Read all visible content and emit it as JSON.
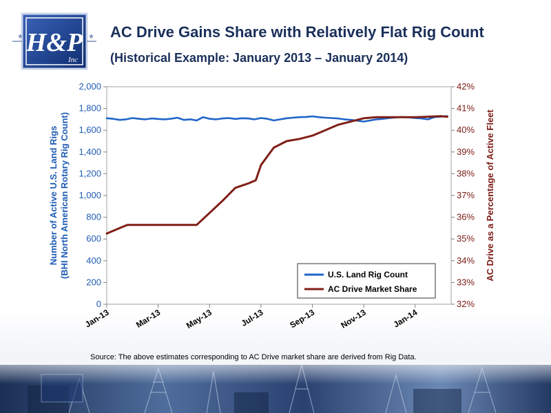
{
  "title": "AC Drive Gains Share with Relatively Flat Rig Count",
  "subtitle": "(Historical Example: January 2013 – January 2014)",
  "logo_text": "H&P Inc",
  "source_note": "Source: The above estimates corresponding to AC Drive market share are derived from Rig Data.",
  "colors": {
    "title": "#1a2f5a",
    "rig_count": "#1e64c8",
    "ac_drive": "#7f1f17",
    "left_axis_text": "#1e5cb3",
    "right_axis_text": "#7a1a14"
  },
  "chart_data": {
    "type": "line",
    "title": "AC Drive Gains Share with Relatively Flat Rig Count",
    "subtitle": "(Historical Example: January 2013 – January 2014)",
    "x_tick_labels": [
      "Jan-13",
      "Mar-13",
      "May-13",
      "Jul-13",
      "Sep-13",
      "Nov-13",
      "Jan-14"
    ],
    "x_range_months": [
      0,
      13.4
    ],
    "y_left": {
      "label_line1": "Number of Active U.S. Land Rigs",
      "label_line2": "(BHI North American Rotary Rig Count)",
      "ticks": [
        "0",
        "200",
        "400",
        "600",
        "800",
        "1,000",
        "1,200",
        "1,400",
        "1,600",
        "1,800",
        "2,000"
      ],
      "range": [
        0,
        2000
      ]
    },
    "y_right": {
      "label": "AC Drive as a Percentage of Active Fleet",
      "ticks": [
        "32%",
        "33%",
        "34%",
        "35%",
        "36%",
        "37%",
        "38%",
        "39%",
        "40%",
        "41%",
        "42%"
      ],
      "range": [
        32,
        42
      ]
    },
    "legend_position": "bottom-right",
    "grid": false,
    "series": [
      {
        "name": "U.S. Land Rig Count",
        "axis": "left",
        "color": "#1e64c8",
        "x": [
          0,
          0.25,
          0.5,
          0.75,
          1.0,
          1.25,
          1.5,
          1.75,
          2.0,
          2.25,
          2.5,
          2.75,
          3.0,
          3.25,
          3.5,
          3.75,
          4.0,
          4.25,
          4.5,
          4.75,
          5.0,
          5.25,
          5.5,
          5.75,
          6.0,
          6.25,
          6.5,
          6.75,
          7.0,
          7.25,
          7.5,
          7.75,
          8.0,
          8.25,
          8.5,
          8.75,
          9.0,
          9.25,
          9.5,
          9.75,
          10.0,
          10.25,
          10.5,
          10.75,
          11.0,
          11.25,
          11.5,
          11.75,
          12.0,
          12.25,
          12.5,
          12.75,
          13.0,
          13.25
        ],
        "y": [
          1710,
          1705,
          1695,
          1700,
          1712,
          1705,
          1700,
          1708,
          1704,
          1700,
          1706,
          1715,
          1695,
          1700,
          1690,
          1720,
          1705,
          1700,
          1708,
          1712,
          1704,
          1710,
          1708,
          1700,
          1712,
          1705,
          1690,
          1700,
          1710,
          1715,
          1720,
          1722,
          1728,
          1720,
          1715,
          1712,
          1708,
          1700,
          1695,
          1688,
          1680,
          1690,
          1700,
          1705,
          1712,
          1718,
          1722,
          1718,
          1712,
          1708,
          1700,
          1720,
          1725,
          1730
        ]
      },
      {
        "name": "AC Drive Market Share",
        "axis": "right",
        "color": "#7f1f17",
        "x": [
          0,
          0.5,
          0.8,
          1.0,
          1.5,
          2.0,
          2.5,
          3.0,
          3.5,
          4.0,
          4.5,
          5.0,
          5.5,
          5.8,
          6.0,
          6.5,
          7.0,
          7.5,
          8.0,
          8.5,
          9.0,
          9.5,
          10.0,
          10.5,
          11.0,
          11.5,
          12.0,
          12.5,
          13.0,
          13.25
        ],
        "y": [
          35.25,
          35.5,
          35.65,
          35.65,
          35.65,
          35.65,
          35.65,
          35.65,
          35.65,
          36.2,
          36.75,
          37.35,
          37.55,
          37.7,
          38.4,
          39.2,
          39.5,
          39.6,
          39.75,
          40.0,
          40.25,
          40.4,
          40.55,
          40.6,
          40.6,
          40.6,
          40.6,
          40.62,
          40.65,
          40.62
        ]
      }
    ]
  }
}
